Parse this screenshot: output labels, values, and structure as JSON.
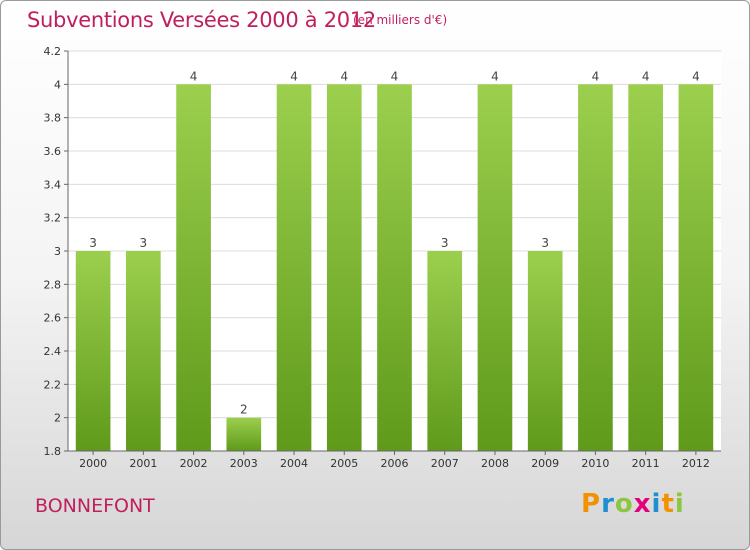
{
  "header": {
    "title": "Subventions Versées 2000 à 2012",
    "subtitle": "(en milliers d'€)"
  },
  "footer": {
    "commune": "BONNEFONT",
    "logo": {
      "letters": [
        "P",
        "r",
        "o",
        "x",
        "i",
        "t",
        "i"
      ],
      "colors": [
        "#f39200",
        "#1f8fd1",
        "#8dc63f",
        "#e4007c",
        "#1f8fd1",
        "#f39200",
        "#8dc63f"
      ]
    }
  },
  "chart_data": {
    "type": "bar",
    "categories": [
      "2000",
      "2001",
      "2002",
      "2003",
      "2004",
      "2005",
      "2006",
      "2007",
      "2008",
      "2009",
      "2010",
      "2011",
      "2012"
    ],
    "values": [
      3,
      3,
      4,
      2,
      4,
      4,
      4,
      3,
      4,
      3,
      4,
      4,
      4
    ],
    "data_labels": [
      "3",
      "3",
      "4",
      "2",
      "4",
      "4",
      "4",
      "3",
      "4",
      "3",
      "4",
      "4",
      "4"
    ],
    "title": "Subventions Versées 2000 à 2012",
    "subtitle": "(en milliers d'€)",
    "ylim": [
      1.8,
      4.2
    ],
    "yticks": [
      1.8,
      2,
      2.2,
      2.4,
      2.6,
      2.8,
      3,
      3.2,
      3.4,
      3.6,
      3.8,
      4,
      4.2
    ],
    "ytick_labels": [
      "1.8",
      "2",
      "2.2",
      "2.4",
      "2.6",
      "2.8",
      "3",
      "3.2",
      "3.4",
      "3.6",
      "3.8",
      "4",
      "4.2"
    ],
    "grid": true,
    "bar_color": "#8dc63f",
    "bar_color_dark": "#5f9a1a"
  }
}
